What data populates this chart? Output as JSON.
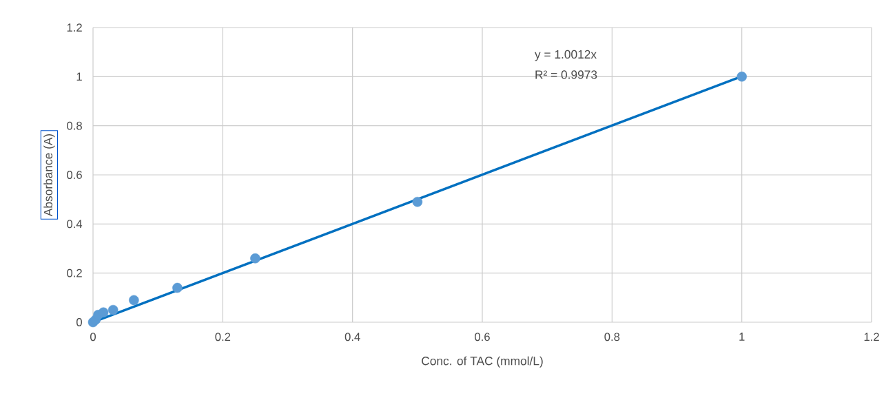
{
  "chart_data": {
    "type": "scatter",
    "xlabel": "Conc. of TAC (mmol/L)",
    "ylabel": "Absorbance (A)",
    "annotations": [
      "y = 1.0012x",
      "R² = 0.9973"
    ],
    "series": [
      {
        "color": "#5b9bd5",
        "marker": "circle",
        "x": [
          0,
          0.004,
          0.008,
          0.016,
          0.031,
          0.063,
          0.13,
          0.25,
          0.5,
          1
        ],
        "values": [
          0,
          0.01,
          0.03,
          0.04,
          0.05,
          0.09,
          0.14,
          0.26,
          0.49,
          1
        ]
      },
      {
        "type": "line",
        "color": "#0070c0",
        "line_style": "solid",
        "x": [
          0,
          1
        ],
        "values": [
          0,
          1.0012
        ]
      }
    ],
    "xlim": [
      0,
      1.2
    ],
    "ylim": [
      0,
      1.2
    ],
    "xticks": [
      0,
      0.2,
      0.4,
      0.6,
      0.8,
      1,
      1.2
    ],
    "yticks": [
      0,
      0.2,
      0.4,
      0.6,
      0.8,
      1,
      1.2
    ],
    "grid": true
  }
}
